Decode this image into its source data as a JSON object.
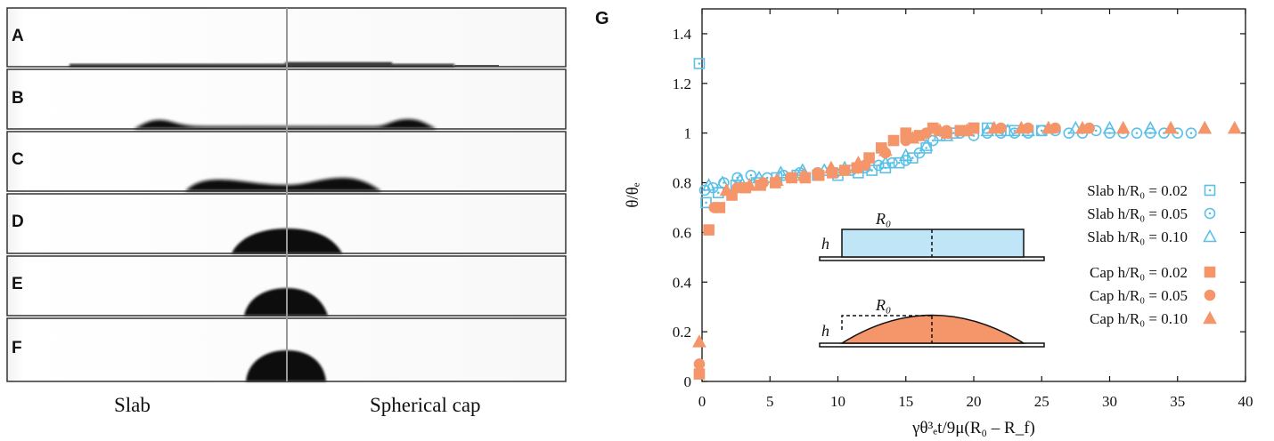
{
  "panels": {
    "letters": [
      "A",
      "B",
      "C",
      "D",
      "E",
      "F",
      "G"
    ],
    "caption_left": "Slab",
    "caption_right": "Spherical cap"
  },
  "chart_data": {
    "type": "scatter",
    "panel_label": "G",
    "xlabel": "γθ³ₑt/9μ(R₀ – R_f)",
    "ylabel": "θ/θₑ",
    "xlim": [
      0,
      40
    ],
    "ylim": [
      0,
      1.5
    ],
    "x_ticks": [
      0,
      5,
      10,
      15,
      20,
      25,
      30,
      35,
      40
    ],
    "y_ticks": [
      0,
      0.2,
      0.4,
      0.6,
      0.8,
      1,
      1.2,
      1.4
    ],
    "y_tick_labels": [
      "0",
      "0.2",
      "0.4",
      "0.6",
      "0.8",
      "1",
      "1.2",
      "1.4"
    ],
    "grid": false,
    "legend_position": "right",
    "colors": {
      "slab": "#5bc0e8",
      "cap": "#f4956a"
    },
    "inset_labels": {
      "radius": "R₀",
      "height": "h"
    },
    "series": [
      {
        "name": "Slab h/R₀ = 0.02",
        "group": "slab",
        "marker": "square-dot",
        "x": [
          -0.2,
          0.3,
          1.2,
          2.5,
          4,
          5.5,
          7,
          8.5,
          10,
          11.5,
          12.5,
          13.5,
          14.5,
          15.5,
          16.5,
          17.5,
          18.5,
          20,
          21,
          22,
          23,
          24,
          25
        ],
        "y": [
          1.28,
          0.72,
          0.76,
          0.79,
          0.8,
          0.82,
          0.83,
          0.83,
          0.83,
          0.84,
          0.85,
          0.86,
          0.88,
          0.9,
          0.94,
          0.99,
          1.0,
          1.02,
          1.02,
          1.01,
          1.01,
          1.01,
          1.01
        ]
      },
      {
        "name": "Slab h/R₀ = 0.05",
        "group": "slab",
        "marker": "circle-dot",
        "x": [
          0.2,
          0.8,
          1.6,
          2.6,
          3.6,
          4.8,
          6,
          7.2,
          8.5,
          9.8,
          11,
          12,
          13,
          14,
          15,
          16,
          17,
          18,
          19,
          20,
          21,
          22,
          23,
          24,
          25,
          26,
          27,
          28,
          29,
          30,
          31,
          32,
          33,
          34,
          35,
          36
        ],
        "y": [
          0.77,
          0.78,
          0.8,
          0.82,
          0.83,
          0.82,
          0.83,
          0.84,
          0.84,
          0.84,
          0.85,
          0.86,
          0.87,
          0.88,
          0.89,
          0.92,
          0.97,
          1.0,
          1.0,
          0.99,
          1.0,
          1.0,
          1.0,
          1.0,
          1.01,
          1.01,
          1.0,
          1.0,
          1.01,
          1.0,
          1.0,
          1.0,
          1.0,
          1.0,
          1.0,
          1.0
        ]
      },
      {
        "name": "Slab h/R₀ = 0.10",
        "group": "slab",
        "marker": "triangle",
        "x": [
          0.5,
          1.5,
          2.8,
          4.2,
          5.8,
          7.4,
          9,
          10.5,
          12,
          13.5,
          15,
          16.5,
          18,
          19.5,
          21,
          22.5,
          24,
          25.5,
          27.5,
          30,
          33,
          37
        ],
        "y": [
          0.79,
          0.8,
          0.81,
          0.82,
          0.84,
          0.85,
          0.85,
          0.86,
          0.87,
          0.88,
          0.91,
          0.95,
          0.99,
          1.01,
          1.01,
          1.01,
          1.01,
          1.02,
          1.02,
          1.02,
          1.02,
          1.02
        ]
      },
      {
        "name": "Cap h/R₀ = 0.02",
        "group": "cap",
        "marker": "square",
        "x": [
          -0.2,
          0.5,
          1.3,
          2.2,
          3.2,
          4.3,
          5.4,
          6.6,
          7.6,
          8.6,
          9.6,
          10.5,
          11.4,
          12.3,
          13.2,
          14.1,
          15,
          16,
          17,
          18,
          19,
          20
        ],
        "y": [
          0.03,
          0.61,
          0.7,
          0.75,
          0.78,
          0.79,
          0.8,
          0.82,
          0.82,
          0.83,
          0.84,
          0.85,
          0.86,
          0.9,
          0.94,
          0.97,
          1.0,
          0.99,
          1.02,
          1.0,
          1.01,
          1.02
        ]
      },
      {
        "name": "Cap h/R₀ = 0.05",
        "group": "cap",
        "marker": "circle",
        "x": [
          -0.2,
          0.9,
          2.6,
          4.5,
          6.5,
          8.5,
          10.5,
          12,
          13.5,
          15,
          16.5,
          18,
          20,
          22,
          24,
          26,
          28.5
        ],
        "y": [
          0.07,
          0.7,
          0.78,
          0.8,
          0.82,
          0.84,
          0.85,
          0.87,
          0.92,
          0.97,
          1.0,
          1.01,
          1.02,
          1.02,
          1.02,
          1.02,
          1.02
        ]
      },
      {
        "name": "Cap h/R₀ = 0.10",
        "group": "cap",
        "marker": "triangle",
        "x": [
          -0.2,
          1.8,
          3.5,
          5.5,
          7.5,
          9.5,
          11.5,
          13.5,
          15.5,
          17.5,
          19.5,
          21.5,
          23.5,
          25.5,
          28,
          31,
          34.5,
          37,
          39.2
        ],
        "y": [
          0.16,
          0.77,
          0.79,
          0.81,
          0.83,
          0.86,
          0.88,
          0.93,
          0.98,
          1.01,
          1.01,
          1.02,
          1.02,
          1.02,
          1.02,
          1.02,
          1.02,
          1.02,
          1.02
        ]
      }
    ]
  }
}
